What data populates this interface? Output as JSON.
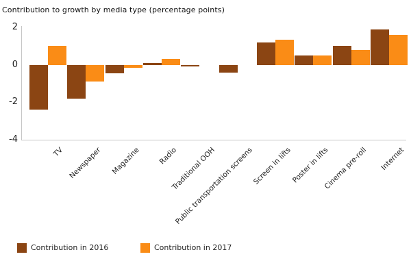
{
  "title": "Contribution to growth by media type (percentage points)",
  "chart_data": {
    "type": "bar",
    "categories": [
      "TV",
      "Newspaper",
      "Magazine",
      "Radio",
      "Traditional OOH",
      "Public transportation screens",
      "Screen in lifts",
      "Poster in lifts",
      "Cinema pre-roll",
      "Internet"
    ],
    "series": [
      {
        "name": "Contribution in 2016",
        "color": "#8B4513",
        "values": [
          -2.4,
          -1.8,
          -0.45,
          0.1,
          -0.1,
          -0.4,
          1.2,
          0.5,
          1.0,
          1.9
        ]
      },
      {
        "name": "Contribution in 2017",
        "color": "#FA8C16",
        "values": [
          1.0,
          -0.9,
          -0.15,
          0.3,
          0,
          0,
          1.35,
          0.5,
          0.8,
          1.6
        ]
      }
    ],
    "title": "Contribution to growth by media type (percentage points)",
    "xlabel": "",
    "ylabel": "",
    "ylim": [
      -4,
      2
    ],
    "yticks": [
      2,
      0,
      -2,
      -4
    ],
    "grid": false,
    "legend_position": "bottom-left",
    "axis_color": "#c6c6c6"
  },
  "legend": {
    "items": [
      {
        "label": "Contribution in 2016"
      },
      {
        "label": "Contribution in 2017"
      }
    ]
  }
}
